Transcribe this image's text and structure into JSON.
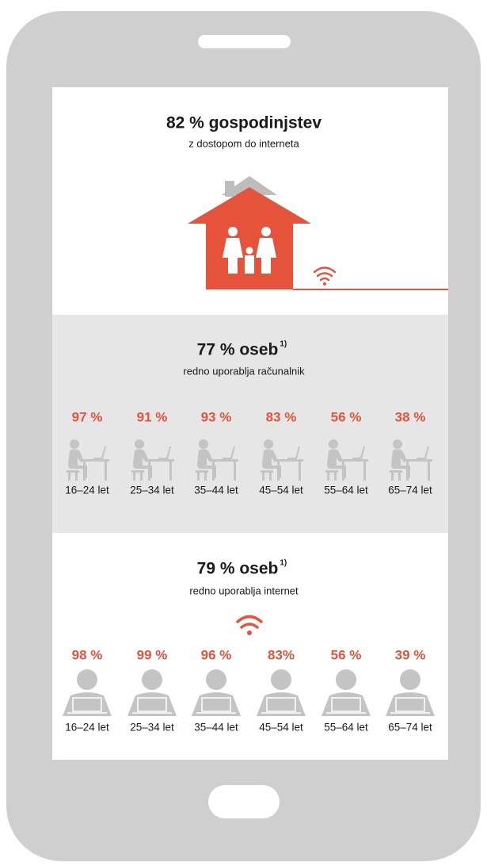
{
  "households": {
    "title": "82 % gospodinjstev",
    "subtitle": "z dostopom do interneta"
  },
  "computer": {
    "title": "77 % oseb",
    "title_note": "1)",
    "subtitle": "redno uporablja računalnik",
    "categories": [
      "16–24 let",
      "25–34 let",
      "35–44 let",
      "45–54 let",
      "55–64 let",
      "65–74 let"
    ],
    "values": [
      97,
      91,
      93,
      83,
      56,
      38
    ],
    "value_labels": [
      "97 %",
      "91 %",
      "93 %",
      "83 %",
      "56 %",
      "38 %"
    ]
  },
  "internet": {
    "title": "79 % oseb",
    "title_note": "1)",
    "subtitle": "redno uporablja internet",
    "categories": [
      "16–24 let",
      "25–34 let",
      "35–44 let",
      "45–54 let",
      "55–64 let",
      "65–74 let"
    ],
    "values": [
      98,
      99,
      96,
      83,
      56,
      39
    ],
    "value_labels": [
      "98 %",
      "99 %",
      "96 %",
      "83%",
      "56 %",
      "39 %"
    ]
  }
}
